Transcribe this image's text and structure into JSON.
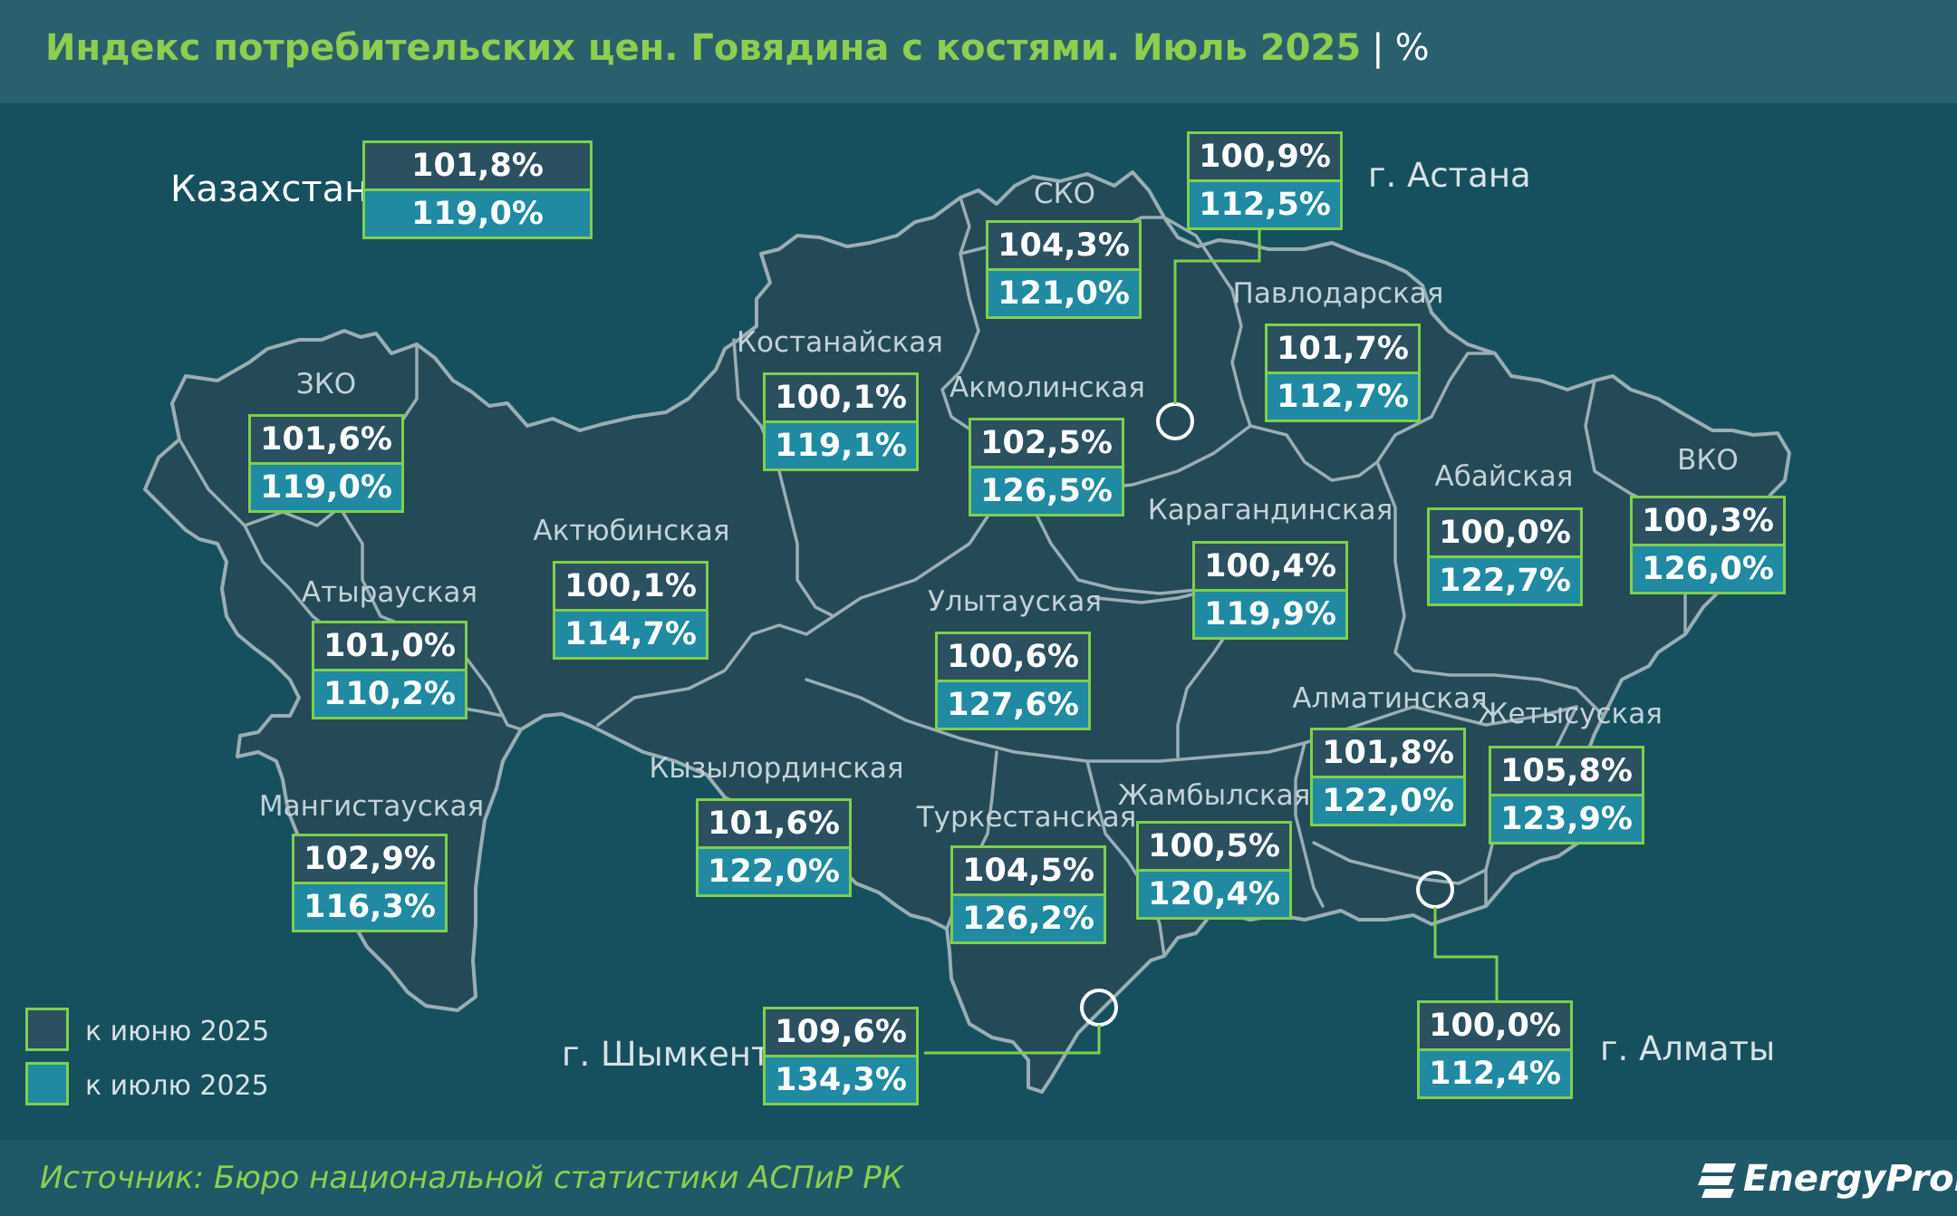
{
  "title": {
    "text": "Индекс потребительских цен. Говядина с костями. Июль 2025",
    "separator": "|",
    "unit": "%"
  },
  "source": "Источник: Бюро национальной статистики АСПиР РК",
  "logo": {
    "text": "EnergyProm"
  },
  "colors": {
    "background": "#16505f",
    "title": "#8dce4f",
    "box_border": "#7ed04b",
    "june_fill": "#2b5060",
    "july_fill": "#1f8aa2"
  },
  "legend": [
    {
      "label": "к июню 2025",
      "color": "#2b5060"
    },
    {
      "label": "к июлю 2025",
      "color": "#1f8aa2"
    }
  ],
  "country": {
    "name": "Казахстан",
    "june": "101,8%",
    "july": "119,0%"
  },
  "regions": [
    {
      "name": "ЗКО",
      "june": "101,6%",
      "july": "119,0%"
    },
    {
      "name": "Атырауская",
      "june": "101,0%",
      "july": "110,2%"
    },
    {
      "name": "Мангистауская",
      "june": "102,9%",
      "july": "116,3%"
    },
    {
      "name": "Актюбинская",
      "june": "100,1%",
      "july": "114,7%"
    },
    {
      "name": "Костанайская",
      "june": "100,1%",
      "july": "119,1%"
    },
    {
      "name": "СКО",
      "june": "104,3%",
      "july": "121,0%"
    },
    {
      "name": "Акмолинская",
      "june": "102,5%",
      "july": "126,5%"
    },
    {
      "name": "Павлодарская",
      "june": "101,7%",
      "july": "112,7%"
    },
    {
      "name": "Карагандинская",
      "june": "100,4%",
      "july": "119,9%"
    },
    {
      "name": "Улытауская",
      "june": "100,6%",
      "july": "127,6%"
    },
    {
      "name": "Абайская",
      "june": "100,0%",
      "july": "122,7%"
    },
    {
      "name": "ВКО",
      "june": "100,3%",
      "july": "126,0%"
    },
    {
      "name": "Кызылординская",
      "june": "101,6%",
      "july": "122,0%"
    },
    {
      "name": "Туркестанская",
      "june": "104,5%",
      "july": "126,2%"
    },
    {
      "name": "Жамбылская",
      "june": "100,5%",
      "july": "120,4%"
    },
    {
      "name": "Алматинская",
      "june": "101,8%",
      "july": "122,0%"
    },
    {
      "name": "Жетысуская",
      "june": "105,8%",
      "july": "123,9%"
    }
  ],
  "cities": [
    {
      "name": "г. Астана",
      "june": "100,9%",
      "july": "112,5%"
    },
    {
      "name": "г. Шымкент",
      "june": "109,6%",
      "july": "134,3%"
    },
    {
      "name": "г. Алматы",
      "june": "100,0%",
      "july": "112,4%"
    }
  ]
}
